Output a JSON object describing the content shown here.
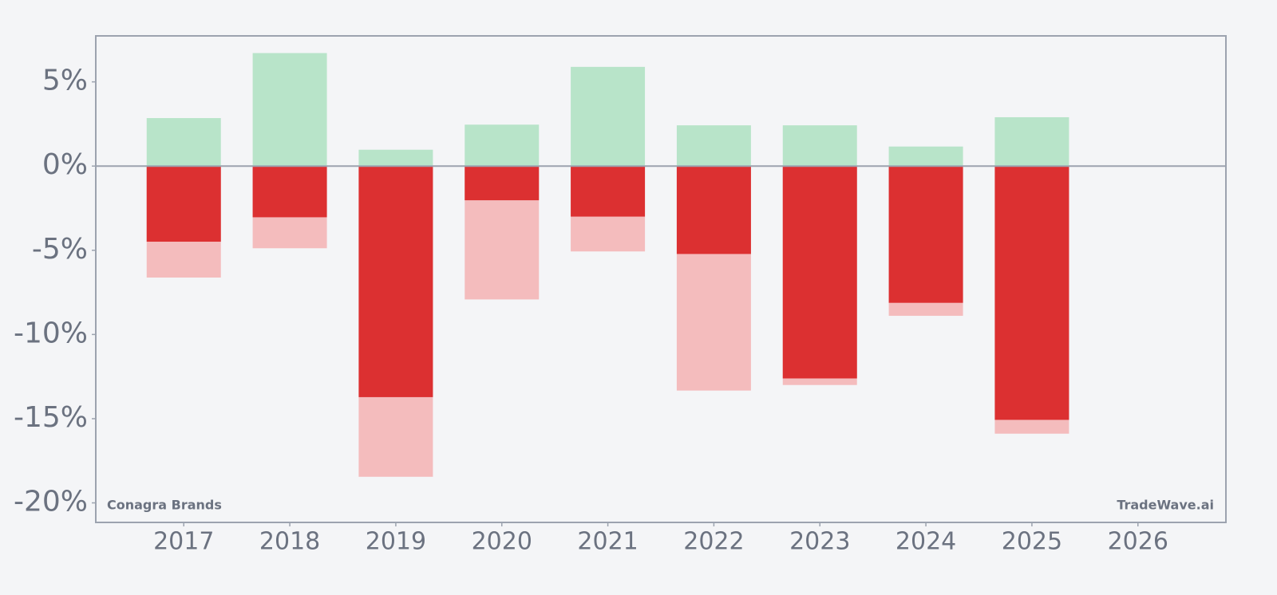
{
  "chart_data": {
    "type": "bar",
    "x": [
      2017,
      2018,
      2019,
      2020,
      2021,
      2022,
      2023,
      2024,
      2025,
      2026
    ],
    "xlim": [
      2016.17,
      2026.83
    ],
    "xticks": [
      2017,
      2018,
      2019,
      2020,
      2021,
      2022,
      2023,
      2024,
      2025,
      2026
    ],
    "ylim": [
      -21.16,
      7.73
    ],
    "yticks": [
      {
        "value": -20,
        "label": "-20%"
      },
      {
        "value": -15,
        "label": "-15%"
      },
      {
        "value": -10,
        "label": "-10%"
      },
      {
        "value": -5,
        "label": "-5%"
      },
      {
        "value": 0,
        "label": "0%"
      },
      {
        "value": 5,
        "label": "5%"
      }
    ],
    "series": [
      {
        "color": "#b8e4c9",
        "values": [
          2.85,
          6.71,
          0.97,
          2.46,
          5.89,
          2.42,
          2.42,
          1.16,
          2.9,
          null
        ]
      },
      {
        "color": "#f4bcbd",
        "values": [
          -6.62,
          -4.88,
          -18.45,
          -7.92,
          -5.07,
          -13.33,
          -13.0,
          -8.89,
          -15.89,
          null
        ]
      },
      {
        "color": "#dc3031",
        "values": [
          -4.49,
          -3.04,
          -13.72,
          -2.03,
          -3.0,
          -5.22,
          -12.61,
          -8.12,
          -15.07,
          null
        ]
      }
    ],
    "annotations": [
      "Conagra Brands",
      "TradeWave.ai"
    ]
  }
}
